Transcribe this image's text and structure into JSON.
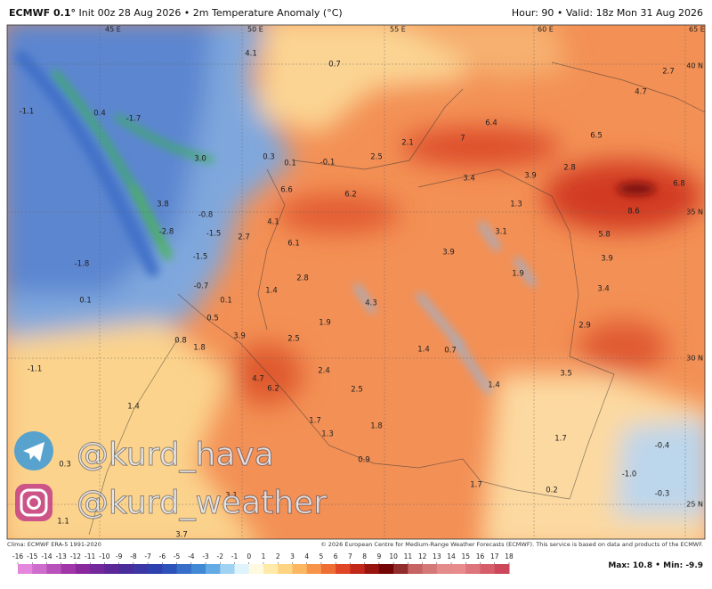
{
  "header": {
    "model": "ECMWF 0.1°",
    "init": "Init 00z 28 Aug 2026",
    "product": "2m Temperature Anomaly (°C)",
    "hour": "Hour: 90",
    "valid": "Valid: 18z Mon 31 Aug 2026"
  },
  "longitudes": [
    "45 E",
    "50 E",
    "55 E",
    "60 E",
    "65 E"
  ],
  "latitudes": [
    "40 N",
    "35 N",
    "30 N",
    "25 N"
  ],
  "map_labels": [
    4.1,
    0.7,
    -1.1,
    0.4,
    -1.7,
    4.7,
    2.7,
    6.4,
    7,
    6.5,
    2.1,
    {
      "value": 3,
      "label": "3.0"
    },
    0.3,
    0.1,
    -0.1,
    2.5,
    3.4,
    3.9,
    2.8,
    6.8,
    8.6,
    6.6,
    6.2,
    1.3,
    3.8,
    -0.8,
    4.1,
    -2.8,
    -1.5,
    2.7,
    6.1,
    3.1,
    5.8,
    3.9,
    3.9,
    -1.5,
    -1.8,
    2.8,
    1.9,
    -0.7,
    1.4,
    3.4,
    0.1,
    0.1,
    4.3,
    1.9,
    0.5,
    2.9,
    3.9,
    2.5,
    0.8,
    1.8,
    1.4,
    0.7,
    -1.1,
    2.4,
    4.7,
    6.2,
    1.4,
    3.5,
    2.5,
    1.4,
    1.7,
    1.8,
    1.3,
    1.7,
    -0.4,
    {
      "value": -1,
      "label": "-1.0"
    },
    0.3,
    0.9,
    1.7,
    0.2,
    -0.3,
    3.1,
    3.7,
    1.1
  ],
  "watermarks": [
    "@kurd_hava",
    "@kurd_weather"
  ],
  "footer": {
    "climate": "Clima: ECMWF ERA-5 1991-2020",
    "copyright": "© 2026 European Centre for Medium-Range Weather Forecasts (ECMWF). This service is based on data and products of the ECMWF.",
    "max": "Max: 10.8",
    "min": "Min: -9.9"
  },
  "colorbar": {
    "ticks": [
      -16,
      -15,
      -14,
      -13,
      -12,
      -11,
      -10,
      -9,
      -8,
      -7,
      -6,
      -5,
      -4,
      -3,
      -2,
      -1,
      0,
      1,
      2,
      3,
      4,
      5,
      6,
      7,
      8,
      9,
      10,
      11,
      12,
      13,
      14,
      15,
      16,
      17,
      18
    ]
  }
}
